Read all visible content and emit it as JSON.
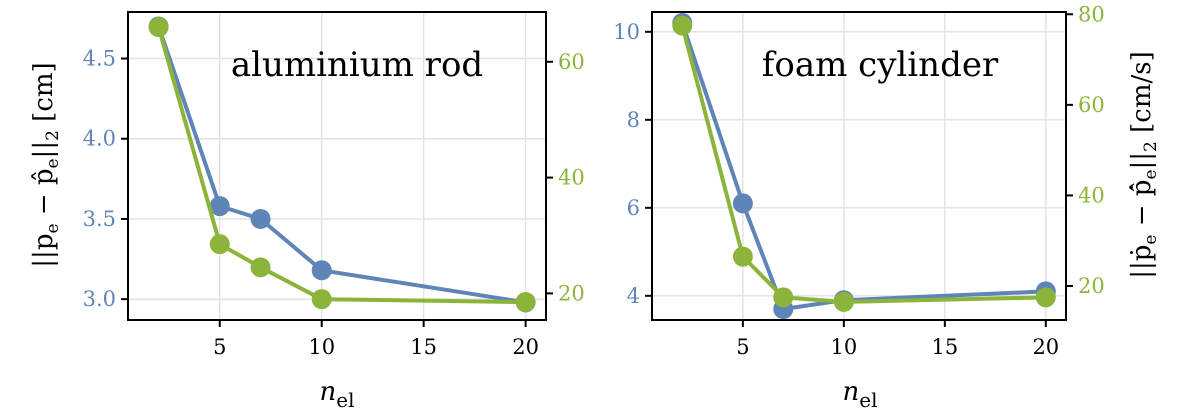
{
  "colors": {
    "position": "#5f84b8",
    "velocity": "#8cb43a",
    "grid": "#e3e3e3",
    "axis": "#000000"
  },
  "labels": {
    "x_var": "n",
    "x_sub": "el",
    "left_y_prefix": "||p",
    "left_y_sub1": "e",
    "left_y_mid": " − p̂",
    "left_y_sub2": "e",
    "left_y_suffix": "||",
    "left_y_norm": "2",
    "left_y_unit": " [cm]",
    "right_y_prefix": "||ṗ",
    "right_y_sub1": "e",
    "right_y_mid": " − p̂̇",
    "right_y_sub2": "e",
    "right_y_suffix": "||",
    "right_y_norm": "2",
    "right_y_unit": " [cm/s]"
  },
  "chart_data": [
    {
      "type": "line",
      "title": "aluminium rod",
      "x": [
        2,
        5,
        7,
        10,
        20
      ],
      "xticks": [
        5,
        10,
        15,
        20
      ],
      "xlim": [
        0.5,
        21
      ],
      "grid": true,
      "left_axis": {
        "ylim": [
          2.87,
          4.79
        ],
        "ticks": [
          "3.0",
          "3.5",
          "4.0",
          "4.5"
        ],
        "tick_values": [
          3.0,
          3.5,
          4.0,
          4.5
        ]
      },
      "right_axis": {
        "ylim": [
          15.4,
          68.6
        ],
        "ticks": [
          "20",
          "40",
          "60"
        ],
        "tick_values": [
          20,
          40,
          60
        ]
      },
      "series": [
        {
          "axis": "left",
          "values": [
            4.7,
            3.58,
            3.5,
            3.18,
            2.98
          ]
        },
        {
          "axis": "right",
          "values": [
            66.0,
            28.5,
            24.5,
            19.0,
            18.5
          ]
        }
      ]
    },
    {
      "type": "line",
      "title": "foam cylinder",
      "x": [
        2,
        5,
        7,
        10,
        20
      ],
      "xticks": [
        5,
        10,
        15,
        20
      ],
      "xlim": [
        0.5,
        21
      ],
      "grid": true,
      "left_axis": {
        "ylim": [
          3.45,
          10.45
        ],
        "ticks": [
          "4",
          "6",
          "8",
          "10"
        ],
        "tick_values": [
          4,
          6,
          8,
          10
        ]
      },
      "right_axis": {
        "ylim": [
          12.5,
          80.5
        ],
        "ticks": [
          "20",
          "40",
          "60",
          "80"
        ],
        "tick_values": [
          20,
          40,
          60,
          80
        ]
      },
      "series": [
        {
          "axis": "left",
          "values": [
            10.2,
            6.1,
            3.7,
            3.9,
            4.1
          ]
        },
        {
          "axis": "right",
          "values": [
            77.5,
            26.5,
            17.5,
            16.5,
            17.5
          ]
        }
      ]
    }
  ]
}
